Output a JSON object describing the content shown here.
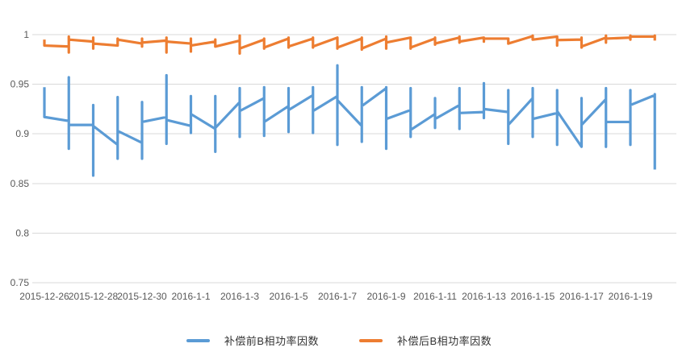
{
  "chart_data": {
    "type": "line",
    "title": "",
    "xlabel": "",
    "ylabel": "",
    "legend_position": "bottom",
    "grid": true,
    "style": {
      "background_color": "#ffffff",
      "grid_color": "#d9d9d9",
      "axis_label_color": "#595959",
      "legend_text_color": "#333333"
    },
    "y_axis": {
      "min": 0.75,
      "max": 1.0,
      "ticks": [
        {
          "label": "1",
          "value": 1.0
        },
        {
          "label": "0.95",
          "value": 0.95
        },
        {
          "label": "0.9",
          "value": 0.9
        },
        {
          "label": "0.85",
          "value": 0.85
        },
        {
          "label": "0.8",
          "value": 0.8
        },
        {
          "label": "0.75",
          "value": 0.75
        }
      ]
    },
    "x_axis": {
      "tick_day_step": 2,
      "tick_labels": [
        "2015-12-26",
        "2015-12-28",
        "2015-12-30",
        "2016-1-1",
        "2016-1-3",
        "2016-1-5",
        "2016-1-7",
        "2016-1-9",
        "2016-1-11",
        "2016-1-13",
        "2016-1-15",
        "2016-1-17",
        "2016-1-19"
      ]
    },
    "dates": [
      "2015-12-26",
      "2015-12-27",
      "2015-12-28",
      "2015-12-29",
      "2015-12-30",
      "2015-12-31",
      "2016-1-1",
      "2016-1-2",
      "2016-1-3",
      "2016-1-4",
      "2016-1-5",
      "2016-1-6",
      "2016-1-7",
      "2016-1-8",
      "2016-1-9",
      "2016-1-10",
      "2016-1-11",
      "2016-1-12",
      "2016-1-13",
      "2016-1-14",
      "2016-1-15",
      "2016-1-16",
      "2016-1-17",
      "2016-1-18",
      "2016-1-19",
      "2016-1-20"
    ],
    "daily_point_order": [
      "arrive",
      "high",
      "low",
      "depart"
    ],
    "series": [
      {
        "name": "补偿前B相功率因数",
        "color": "#5b9bd5",
        "daily": [
          [
            null,
            0.947,
            0.918,
            0.917
          ],
          [
            0.913,
            0.957,
            0.885,
            0.909
          ],
          [
            0.909,
            0.929,
            0.858,
            0.908
          ],
          [
            0.889,
            0.937,
            0.875,
            0.903
          ],
          [
            0.891,
            0.932,
            0.875,
            0.912
          ],
          [
            0.917,
            0.959,
            0.89,
            0.914
          ],
          [
            0.908,
            0.938,
            0.901,
            0.92
          ],
          [
            0.905,
            0.938,
            0.882,
            0.906
          ],
          [
            0.932,
            0.946,
            0.897,
            0.923
          ],
          [
            0.936,
            0.947,
            0.898,
            0.912
          ],
          [
            0.928,
            0.946,
            0.902,
            0.924
          ],
          [
            0.939,
            0.947,
            0.901,
            0.923
          ],
          [
            0.938,
            0.969,
            0.889,
            0.934
          ],
          [
            0.908,
            0.947,
            0.892,
            0.928
          ],
          [
            0.946,
            0.947,
            0.885,
            0.915
          ],
          [
            0.924,
            0.946,
            0.897,
            0.904
          ],
          [
            0.92,
            0.936,
            0.906,
            0.915
          ],
          [
            0.929,
            0.946,
            0.905,
            0.921
          ],
          [
            0.922,
            0.951,
            0.916,
            0.925
          ],
          [
            0.922,
            0.944,
            0.89,
            0.909
          ],
          [
            0.936,
            0.946,
            0.897,
            0.915
          ],
          [
            0.921,
            0.944,
            0.889,
            0.923
          ],
          [
            0.887,
            0.936,
            0.895,
            0.909
          ],
          [
            0.935,
            0.946,
            0.887,
            0.912
          ],
          [
            0.912,
            0.944,
            0.889,
            0.929
          ],
          [
            0.939,
            0.94,
            0.864,
            null
          ]
        ]
      },
      {
        "name": "补偿后B相功率因数",
        "color": "#ed7d31",
        "daily": [
          [
            null,
            0.995,
            0.989,
            0.989
          ],
          [
            0.988,
            0.998,
            0.982,
            0.995
          ],
          [
            0.993,
            0.997,
            0.986,
            0.991
          ],
          [
            0.989,
            0.996,
            0.989,
            0.995
          ],
          [
            0.991,
            0.996,
            0.988,
            0.992
          ],
          [
            0.994,
            0.997,
            0.982,
            0.993
          ],
          [
            0.991,
            0.996,
            0.983,
            0.989
          ],
          [
            0.993,
            0.995,
            0.988,
            0.988
          ],
          [
            0.994,
            0.999,
            0.981,
            0.986
          ],
          [
            0.995,
            0.996,
            0.986,
            0.987
          ],
          [
            0.996,
            0.997,
            0.987,
            0.988
          ],
          [
            0.996,
            0.997,
            0.987,
            0.988
          ],
          [
            0.997,
            0.997,
            0.986,
            0.987
          ],
          [
            0.996,
            0.997,
            0.985,
            0.986
          ],
          [
            0.996,
            0.998,
            0.986,
            0.992
          ],
          [
            0.997,
            0.997,
            0.986,
            0.987
          ],
          [
            0.996,
            0.997,
            0.99,
            0.991
          ],
          [
            0.997,
            0.998,
            0.992,
            0.993
          ],
          [
            0.997,
            0.997,
            0.993,
            0.996
          ],
          [
            0.996,
            0.996,
            0.991,
            0.991
          ],
          [
            0.9985,
            0.999,
            0.995,
            0.995
          ],
          [
            0.998,
            0.998,
            0.989,
            0.9945
          ],
          [
            0.995,
            0.997,
            0.987,
            0.988
          ],
          [
            0.997,
            0.999,
            0.992,
            0.996
          ],
          [
            0.997,
            0.999,
            0.995,
            0.998
          ],
          [
            0.998,
            0.999,
            0.994,
            null
          ]
        ]
      }
    ]
  }
}
